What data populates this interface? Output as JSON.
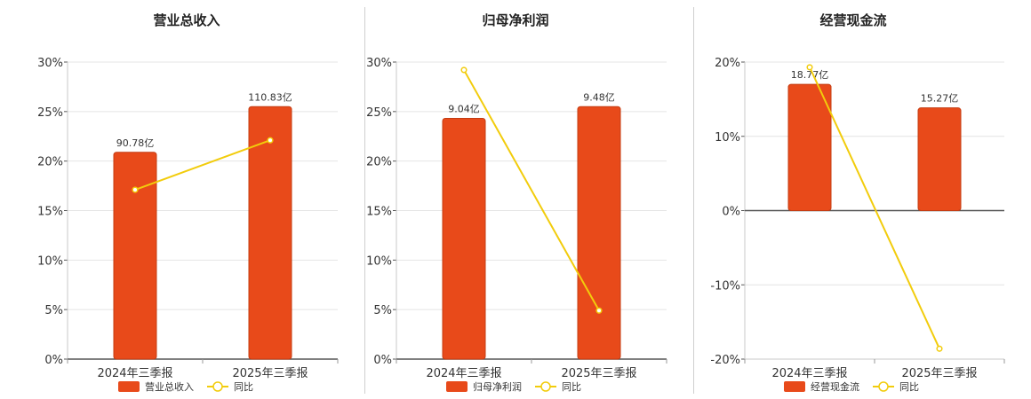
{
  "chart_data": [
    {
      "type": "bar",
      "title": "营业总收入",
      "categories": [
        "2024年三季报",
        "2025年三季报"
      ],
      "bar_values": [
        90.78,
        110.83
      ],
      "bar_labels": [
        "90.78亿",
        "110.83亿"
      ],
      "bar_unit": "亿",
      "yoy": [
        17.1,
        22.1
      ],
      "y_ticks": [
        "0%",
        "5%",
        "10%",
        "15%",
        "20%",
        "25%",
        "30%"
      ],
      "ylim": [
        0,
        30
      ],
      "legend": [
        "营业总收入",
        "同比"
      ]
    },
    {
      "type": "bar",
      "title": "归母净利润",
      "categories": [
        "2024年三季报",
        "2025年三季报"
      ],
      "bar_values": [
        9.04,
        9.48
      ],
      "bar_labels": [
        "9.04亿",
        "9.48亿"
      ],
      "bar_unit": "亿",
      "yoy": [
        29.2,
        4.9
      ],
      "y_ticks": [
        "0%",
        "5%",
        "10%",
        "15%",
        "20%",
        "25%",
        "30%"
      ],
      "ylim": [
        0,
        30
      ],
      "legend": [
        "归母净利润",
        "同比"
      ]
    },
    {
      "type": "bar",
      "title": "经营现金流",
      "categories": [
        "2024年三季报",
        "2025年三季报"
      ],
      "bar_values": [
        18.77,
        15.27
      ],
      "bar_labels": [
        "18.77亿",
        "15.27亿"
      ],
      "bar_unit": "亿",
      "yoy": [
        19.3,
        -18.6
      ],
      "y_ticks": [
        "-20%",
        "-10%",
        "0%",
        "10%",
        "20%"
      ],
      "ylim": [
        -20,
        20
      ],
      "legend": [
        "经营现金流",
        "同比"
      ]
    }
  ],
  "colors": {
    "bar": "#e84a1a",
    "bar_edge": "#c43c12",
    "line": "#f2cc0c",
    "grid": "#e4e4e4",
    "axis": "#555555"
  }
}
